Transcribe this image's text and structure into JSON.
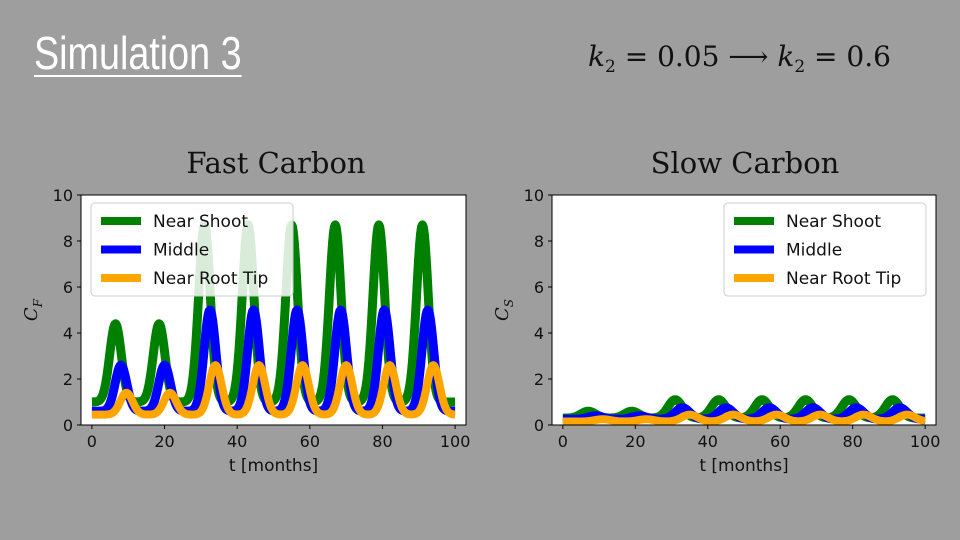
{
  "slide": {
    "title": "Simulation 3",
    "equation": {
      "var": "k",
      "sub": "2",
      "from": "0.05",
      "to": "0.6"
    }
  },
  "chart_data": [
    {
      "type": "line",
      "title": "Fast Carbon",
      "xlabel": "t [months]",
      "ylabel": "C_F",
      "xlim": [
        -3,
        103
      ],
      "ylim": [
        0,
        10
      ],
      "xticks": [
        0,
        20,
        40,
        60,
        80,
        100
      ],
      "yticks": [
        0,
        2,
        4,
        6,
        8,
        10
      ],
      "grid": false,
      "legend": "top-left",
      "series": [
        {
          "name": "Near Shoot",
          "color": "#008000",
          "base": 1.0,
          "peaks": [
            [
              6.5,
              4.4
            ],
            [
              18.5,
              4.4
            ],
            [
              31,
              8.7
            ],
            [
              43,
              8.7
            ],
            [
              55,
              8.7
            ],
            [
              67,
              8.7
            ],
            [
              79,
              8.7
            ],
            [
              91,
              8.7
            ]
          ],
          "width": 1.6
        },
        {
          "name": "Middle",
          "color": "#0000ff",
          "base": 0.6,
          "peaks": [
            [
              8,
              2.6
            ],
            [
              20,
              2.6
            ],
            [
              32.5,
              5.0
            ],
            [
              44.5,
              5.0
            ],
            [
              56.5,
              5.0
            ],
            [
              68.5,
              5.0
            ],
            [
              80.5,
              5.0
            ],
            [
              92.5,
              5.0
            ]
          ],
          "width": 1.6
        },
        {
          "name": "Near Root Tip",
          "color": "#ffa500",
          "base": 0.45,
          "peaks": [
            [
              9.5,
              1.4
            ],
            [
              21.5,
              1.4
            ],
            [
              34,
              2.6
            ],
            [
              46,
              2.6
            ],
            [
              58,
              2.6
            ],
            [
              70,
              2.6
            ],
            [
              82,
              2.6
            ],
            [
              94,
              2.6
            ]
          ],
          "width": 1.7
        }
      ]
    },
    {
      "type": "line",
      "title": "Slow Carbon",
      "xlabel": "t [months]",
      "ylabel": "C_S",
      "xlim": [
        -3,
        103
      ],
      "ylim": [
        0,
        10
      ],
      "xticks": [
        0,
        20,
        40,
        60,
        80,
        100
      ],
      "yticks": [
        0,
        2,
        4,
        6,
        8,
        10
      ],
      "grid": false,
      "legend": "top-right",
      "series": [
        {
          "name": "Near Shoot",
          "color": "#008000",
          "base": 0.3,
          "peaks": [
            [
              7,
              0.6
            ],
            [
              19,
              0.6
            ],
            [
              31,
              1.1
            ],
            [
              43,
              1.1
            ],
            [
              55,
              1.1
            ],
            [
              67,
              1.1
            ],
            [
              79,
              1.1
            ],
            [
              91,
              1.1
            ]
          ],
          "width": 2.0
        },
        {
          "name": "Middle",
          "color": "#0000ff",
          "base": 0.25,
          "peaks": [
            [
              9,
              0.4
            ],
            [
              21,
              0.4
            ],
            [
              33,
              0.75
            ],
            [
              45,
              0.75
            ],
            [
              57,
              0.75
            ],
            [
              69,
              0.75
            ],
            [
              81,
              0.75
            ],
            [
              93,
              0.75
            ]
          ],
          "width": 2.0
        },
        {
          "name": "Near Root Tip",
          "color": "#ffa500",
          "base": 0.15,
          "peaks": [
            [
              11,
              0.25
            ],
            [
              23,
              0.25
            ],
            [
              35,
              0.45
            ],
            [
              47,
              0.45
            ],
            [
              59,
              0.45
            ],
            [
              71,
              0.45
            ],
            [
              83,
              0.45
            ],
            [
              95,
              0.45
            ]
          ],
          "width": 2.2
        }
      ]
    }
  ]
}
